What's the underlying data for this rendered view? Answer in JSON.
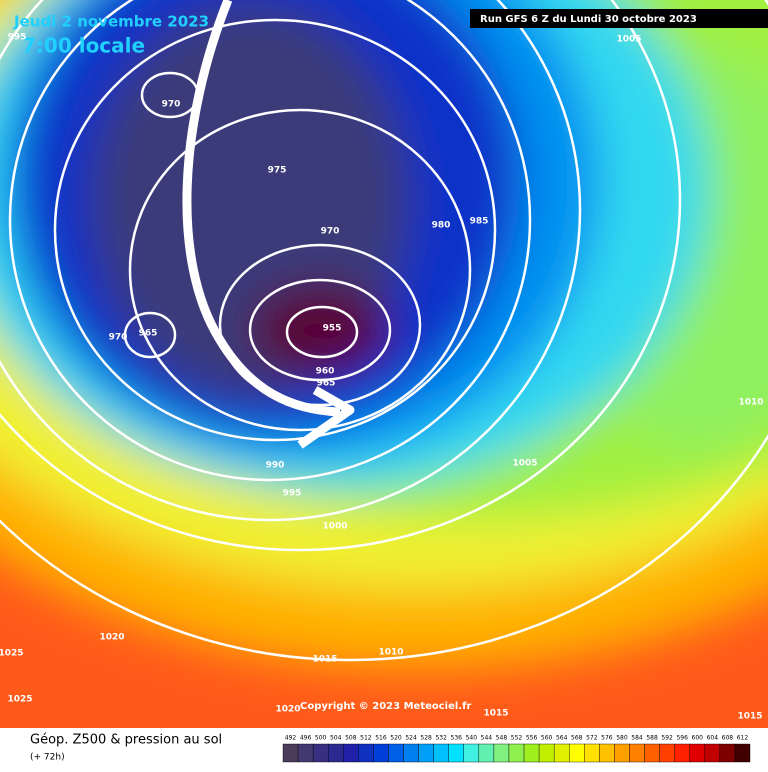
{
  "header": {
    "date": "Jeudi 2 novembre 2023",
    "time": "7:00 locale",
    "run": "Run GFS 6 Z du Lundi 30 octobre 2023"
  },
  "isobar_labels": [
    995,
    1005,
    970,
    975,
    980,
    985,
    970,
    970,
    965,
    955,
    960,
    965,
    990,
    995,
    1005,
    1010,
    1000,
    1020,
    1025,
    1010,
    1015,
    1025,
    1020,
    1015,
    1015
  ],
  "copyright": "Copyright © 2023 Meteociel.fr",
  "footer": {
    "title": "Géop. Z500 & pression au sol",
    "lead": "(+ 72h)"
  },
  "scale": {
    "labels": [
      492,
      496,
      500,
      504,
      508,
      512,
      516,
      520,
      524,
      528,
      532,
      536,
      540,
      544,
      548,
      552,
      556,
      560,
      564,
      568,
      572,
      576,
      580,
      584,
      588,
      592,
      596,
      600,
      604,
      608,
      612
    ]
  }
}
